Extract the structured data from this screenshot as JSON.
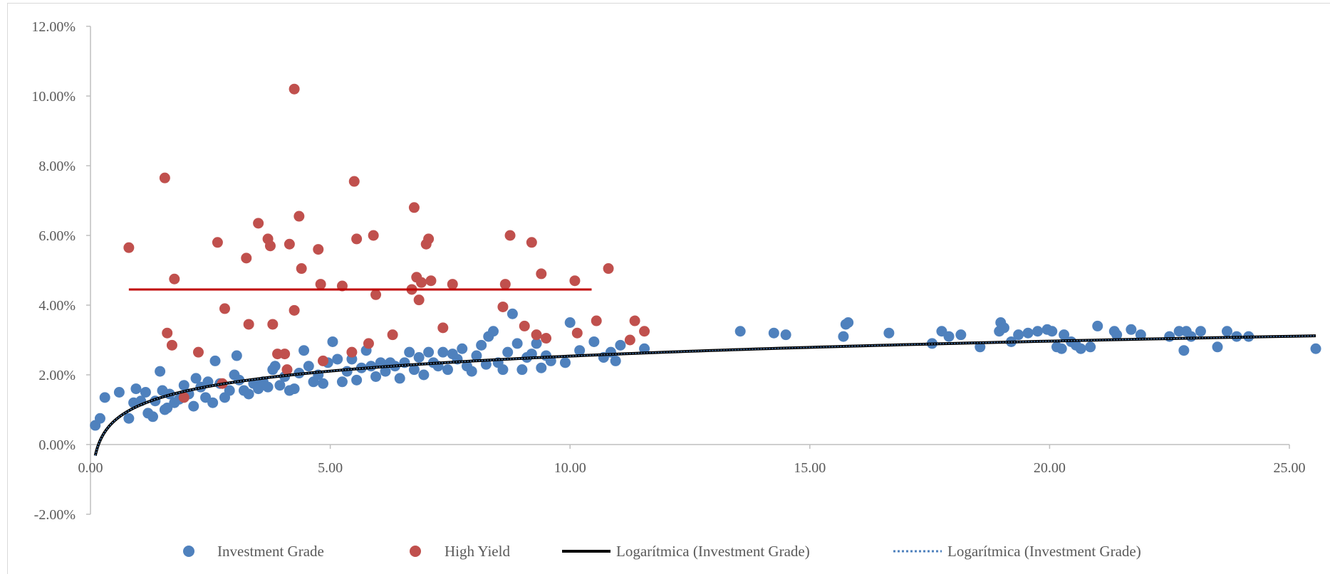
{
  "chart_data": {
    "type": "scatter",
    "title": "",
    "xlabel": "",
    "ylabel": "",
    "xlim": [
      0,
      25
    ],
    "ylim": [
      -0.02,
      0.12
    ],
    "x_ticks": [
      0,
      5,
      10,
      15,
      20,
      25
    ],
    "x_tick_labels": [
      "0.00",
      "5.00",
      "10.00",
      "15.00",
      "20.00",
      "25.00"
    ],
    "y_ticks": [
      -0.02,
      0,
      0.02,
      0.04,
      0.06,
      0.08,
      0.1,
      0.12
    ],
    "y_tick_labels": [
      "-2.00%",
      "0.00%",
      "2.00%",
      "4.00%",
      "6.00%",
      "8.00%",
      "10.00%",
      "12.00%"
    ],
    "grid": false,
    "legend_position": "bottom",
    "colors": {
      "investment_grade": "#4f81bd",
      "high_yield": "#c0504d",
      "trend_solid": "#000000",
      "trend_dotted": "#4f81bd",
      "hy_trend": "#c00000",
      "axis": "#bfbfbf"
    },
    "series": [
      {
        "name": "Investment Grade",
        "points": [
          [
            0.1,
            0.0055
          ],
          [
            0.2,
            0.0075
          ],
          [
            0.3,
            0.0135
          ],
          [
            0.6,
            0.015
          ],
          [
            0.8,
            0.0075
          ],
          [
            0.9,
            0.012
          ],
          [
            0.95,
            0.016
          ],
          [
            1.05,
            0.0125
          ],
          [
            1.15,
            0.015
          ],
          [
            1.2,
            0.009
          ],
          [
            1.3,
            0.008
          ],
          [
            1.35,
            0.0125
          ],
          [
            1.45,
            0.021
          ],
          [
            1.5,
            0.0155
          ],
          [
            1.55,
            0.01
          ],
          [
            1.6,
            0.0105
          ],
          [
            1.65,
            0.0145
          ],
          [
            1.75,
            0.012
          ],
          [
            1.85,
            0.013
          ],
          [
            1.95,
            0.017
          ],
          [
            2.05,
            0.0145
          ],
          [
            2.15,
            0.011
          ],
          [
            2.2,
            0.019
          ],
          [
            2.3,
            0.0165
          ],
          [
            2.4,
            0.0135
          ],
          [
            2.45,
            0.018
          ],
          [
            2.55,
            0.012
          ],
          [
            2.6,
            0.024
          ],
          [
            2.7,
            0.0175
          ],
          [
            2.8,
            0.0135
          ],
          [
            2.9,
            0.0155
          ],
          [
            3.0,
            0.02
          ],
          [
            3.05,
            0.0255
          ],
          [
            3.1,
            0.0185
          ],
          [
            3.2,
            0.0155
          ],
          [
            3.3,
            0.0145
          ],
          [
            3.4,
            0.0175
          ],
          [
            3.5,
            0.016
          ],
          [
            3.6,
            0.018
          ],
          [
            3.7,
            0.0165
          ],
          [
            3.8,
            0.0215
          ],
          [
            3.85,
            0.0225
          ],
          [
            3.95,
            0.017
          ],
          [
            4.05,
            0.0195
          ],
          [
            4.15,
            0.0155
          ],
          [
            4.25,
            0.016
          ],
          [
            4.35,
            0.0205
          ],
          [
            4.45,
            0.027
          ],
          [
            4.55,
            0.0225
          ],
          [
            4.65,
            0.018
          ],
          [
            4.75,
            0.02
          ],
          [
            4.85,
            0.0175
          ],
          [
            4.95,
            0.0235
          ],
          [
            5.05,
            0.0295
          ],
          [
            5.15,
            0.0245
          ],
          [
            5.25,
            0.018
          ],
          [
            5.35,
            0.021
          ],
          [
            5.45,
            0.0245
          ],
          [
            5.55,
            0.0185
          ],
          [
            5.65,
            0.022
          ],
          [
            5.75,
            0.027
          ],
          [
            5.85,
            0.0225
          ],
          [
            5.95,
            0.0195
          ],
          [
            6.05,
            0.0235
          ],
          [
            6.15,
            0.021
          ],
          [
            6.25,
            0.0235
          ],
          [
            6.35,
            0.0225
          ],
          [
            6.45,
            0.019
          ],
          [
            6.55,
            0.0235
          ],
          [
            6.65,
            0.0265
          ],
          [
            6.75,
            0.0215
          ],
          [
            6.85,
            0.025
          ],
          [
            6.95,
            0.02
          ],
          [
            7.05,
            0.0265
          ],
          [
            7.15,
            0.0235
          ],
          [
            7.25,
            0.0225
          ],
          [
            7.35,
            0.0265
          ],
          [
            7.45,
            0.0215
          ],
          [
            7.55,
            0.026
          ],
          [
            7.65,
            0.0245
          ],
          [
            7.75,
            0.0275
          ],
          [
            7.85,
            0.0225
          ],
          [
            7.95,
            0.021
          ],
          [
            8.05,
            0.0255
          ],
          [
            8.15,
            0.0285
          ],
          [
            8.25,
            0.023
          ],
          [
            8.3,
            0.031
          ],
          [
            8.4,
            0.0325
          ],
          [
            8.5,
            0.0235
          ],
          [
            8.6,
            0.0215
          ],
          [
            8.7,
            0.0265
          ],
          [
            8.8,
            0.0375
          ],
          [
            8.9,
            0.029
          ],
          [
            9.0,
            0.0215
          ],
          [
            9.1,
            0.025
          ],
          [
            9.2,
            0.026
          ],
          [
            9.3,
            0.029
          ],
          [
            9.4,
            0.022
          ],
          [
            9.5,
            0.0255
          ],
          [
            9.6,
            0.024
          ],
          [
            9.9,
            0.0235
          ],
          [
            10.0,
            0.035
          ],
          [
            10.2,
            0.027
          ],
          [
            10.5,
            0.0295
          ],
          [
            10.7,
            0.025
          ],
          [
            10.85,
            0.0265
          ],
          [
            10.95,
            0.024
          ],
          [
            11.05,
            0.0285
          ],
          [
            11.55,
            0.0275
          ],
          [
            13.55,
            0.0325
          ],
          [
            14.25,
            0.032
          ],
          [
            14.5,
            0.0315
          ],
          [
            15.7,
            0.031
          ],
          [
            15.75,
            0.0345
          ],
          [
            15.8,
            0.035
          ],
          [
            16.65,
            0.032
          ],
          [
            17.55,
            0.029
          ],
          [
            17.75,
            0.0325
          ],
          [
            17.9,
            0.031
          ],
          [
            18.15,
            0.0315
          ],
          [
            18.55,
            0.028
          ],
          [
            18.95,
            0.0325
          ],
          [
            18.98,
            0.035
          ],
          [
            19.05,
            0.0335
          ],
          [
            19.2,
            0.0295
          ],
          [
            19.35,
            0.0315
          ],
          [
            19.55,
            0.032
          ],
          [
            19.75,
            0.0325
          ],
          [
            19.95,
            0.033
          ],
          [
            20.05,
            0.0325
          ],
          [
            20.15,
            0.028
          ],
          [
            20.25,
            0.0275
          ],
          [
            20.3,
            0.0315
          ],
          [
            20.45,
            0.0295
          ],
          [
            20.55,
            0.0285
          ],
          [
            20.65,
            0.0275
          ],
          [
            20.85,
            0.028
          ],
          [
            21.0,
            0.034
          ],
          [
            21.35,
            0.0325
          ],
          [
            21.4,
            0.0315
          ],
          [
            21.7,
            0.033
          ],
          [
            21.9,
            0.0315
          ],
          [
            22.5,
            0.031
          ],
          [
            22.7,
            0.0325
          ],
          [
            22.8,
            0.027
          ],
          [
            22.85,
            0.0325
          ],
          [
            22.95,
            0.031
          ],
          [
            23.15,
            0.0325
          ],
          [
            23.5,
            0.028
          ],
          [
            23.7,
            0.0325
          ],
          [
            23.9,
            0.031
          ],
          [
            24.15,
            0.031
          ],
          [
            25.55,
            0.0275
          ]
        ]
      },
      {
        "name": "High Yield",
        "points": [
          [
            0.8,
            0.0565
          ],
          [
            1.55,
            0.0765
          ],
          [
            1.6,
            0.032
          ],
          [
            1.7,
            0.0285
          ],
          [
            1.75,
            0.0475
          ],
          [
            1.95,
            0.0135
          ],
          [
            2.25,
            0.0265
          ],
          [
            2.65,
            0.058
          ],
          [
            2.75,
            0.0175
          ],
          [
            2.8,
            0.039
          ],
          [
            3.25,
            0.0535
          ],
          [
            3.3,
            0.0345
          ],
          [
            3.5,
            0.0635
          ],
          [
            3.7,
            0.059
          ],
          [
            3.75,
            0.057
          ],
          [
            3.8,
            0.0345
          ],
          [
            3.9,
            0.026
          ],
          [
            4.05,
            0.026
          ],
          [
            4.1,
            0.0215
          ],
          [
            4.15,
            0.0575
          ],
          [
            4.25,
            0.0385
          ],
          [
            4.35,
            0.0655
          ],
          [
            4.4,
            0.0505
          ],
          [
            4.75,
            0.056
          ],
          [
            4.8,
            0.046
          ],
          [
            4.85,
            0.024
          ],
          [
            5.25,
            0.0455
          ],
          [
            5.45,
            0.0265
          ],
          [
            5.5,
            0.0755
          ],
          [
            5.55,
            0.059
          ],
          [
            5.8,
            0.029
          ],
          [
            5.9,
            0.06
          ],
          [
            5.95,
            0.043
          ],
          [
            6.3,
            0.0315
          ],
          [
            6.7,
            0.0445
          ],
          [
            6.75,
            0.068
          ],
          [
            6.8,
            0.048
          ],
          [
            6.85,
            0.0415
          ],
          [
            6.9,
            0.0465
          ],
          [
            7.0,
            0.0575
          ],
          [
            7.05,
            0.059
          ],
          [
            7.1,
            0.047
          ],
          [
            7.35,
            0.0335
          ],
          [
            7.55,
            0.046
          ],
          [
            8.6,
            0.0395
          ],
          [
            8.65,
            0.046
          ],
          [
            8.75,
            0.06
          ],
          [
            9.05,
            0.034
          ],
          [
            9.2,
            0.058
          ],
          [
            9.3,
            0.0315
          ],
          [
            9.4,
            0.049
          ],
          [
            9.5,
            0.0305
          ],
          [
            10.1,
            0.047
          ],
          [
            10.15,
            0.032
          ],
          [
            10.55,
            0.0355
          ],
          [
            10.8,
            0.0505
          ],
          [
            11.25,
            0.03
          ],
          [
            11.35,
            0.0355
          ],
          [
            11.55,
            0.0325
          ],
          [
            4.25,
            0.102
          ]
        ]
      }
    ],
    "trendlines": [
      {
        "name": "Logarítmica (Investment Grade)",
        "style": "solid",
        "x_range": [
          0.1,
          25.55
        ]
      },
      {
        "name": "Logarítmica (Investment Grade)",
        "style": "dotted",
        "x_range": [
          0.1,
          25.55
        ]
      }
    ],
    "hy_level_line": {
      "y": 0.0445,
      "x_range": [
        0.8,
        10.45
      ]
    }
  }
}
